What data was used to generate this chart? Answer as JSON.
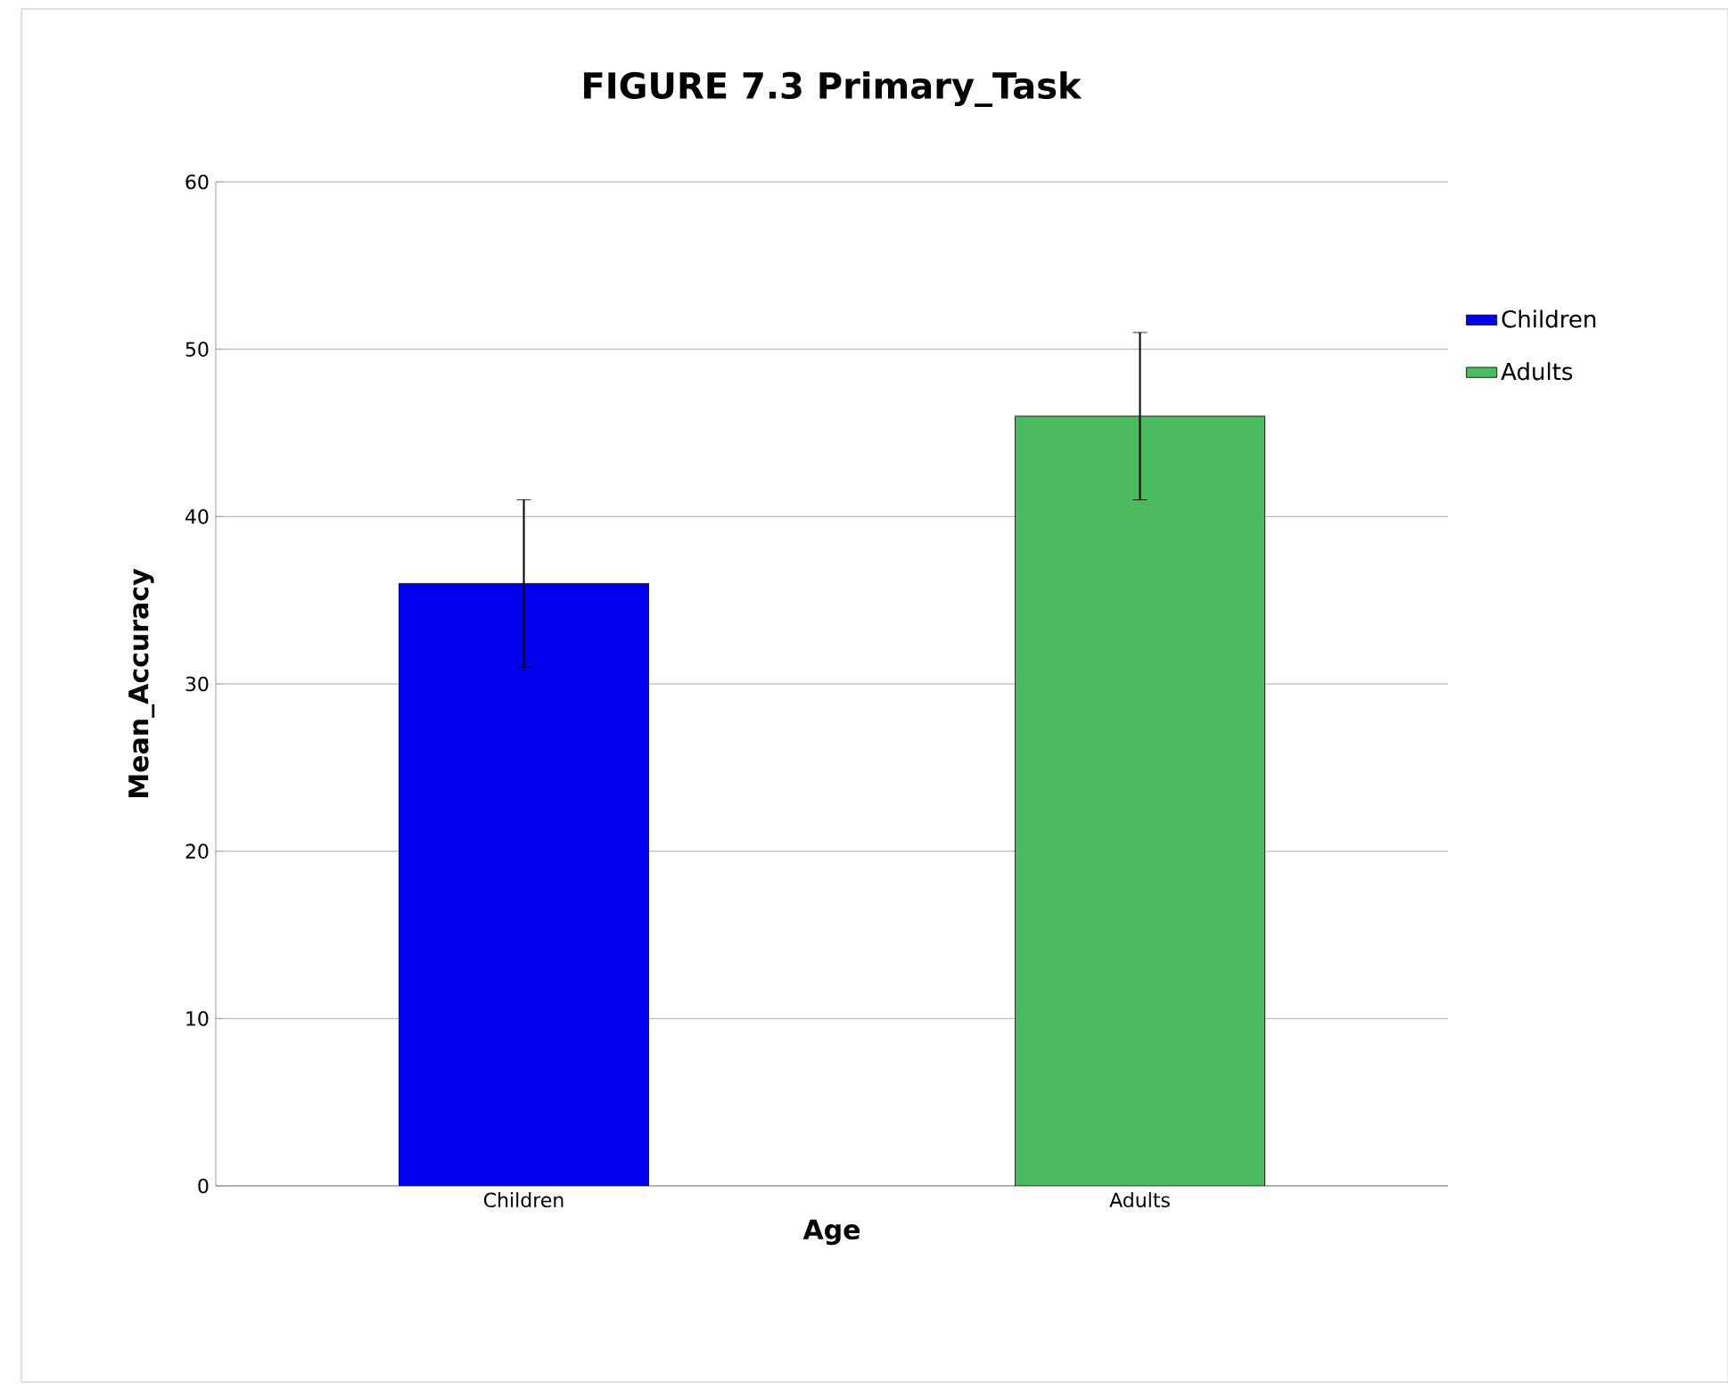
{
  "chart_data": {
    "type": "bar",
    "title": "FIGURE 7.3   Primary_Task",
    "xlabel": "Age",
    "ylabel": "Mean_Accuracy",
    "categories": [
      "Children",
      "Adults"
    ],
    "series": [
      {
        "name": "Children",
        "color": "#0000ee",
        "values": [
          36,
          null
        ],
        "errors": [
          5,
          null
        ]
      },
      {
        "name": "Adults",
        "color": "#4cbb5f",
        "values": [
          null,
          46
        ],
        "errors": [
          null,
          5
        ]
      }
    ],
    "ylim": [
      0,
      60
    ],
    "yticks": [
      0,
      10,
      20,
      30,
      40,
      50,
      60
    ],
    "grid": "y",
    "legend": "right"
  }
}
